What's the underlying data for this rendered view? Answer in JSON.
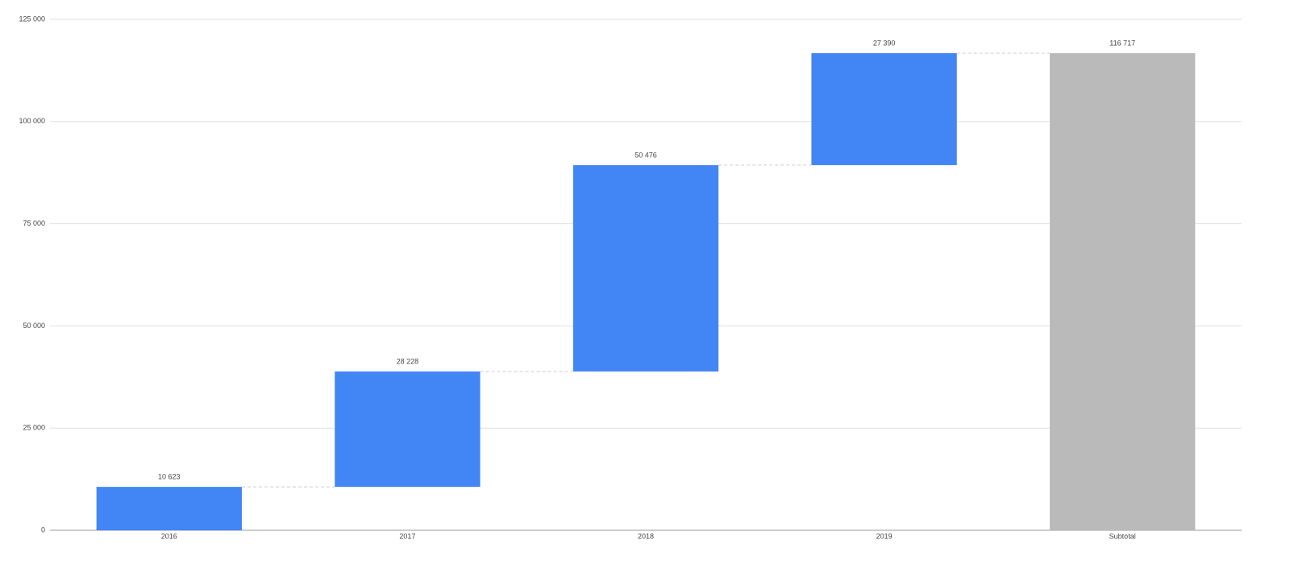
{
  "chart_data": {
    "type": "waterfall",
    "categories": [
      "2016",
      "2017",
      "2018",
      "2019",
      "Subtotal"
    ],
    "values": [
      10623,
      28228,
      50476,
      27390,
      116717
    ],
    "value_labels": [
      "10 623",
      "28 228",
      "50 476",
      "27 390",
      "116 717"
    ],
    "is_total": [
      false,
      false,
      false,
      false,
      true
    ],
    "color": "#4285f4",
    "total_color": "#bababa",
    "ylim": [
      0,
      125000
    ],
    "yticks": [
      0,
      {
        "value": 25000,
        "label": "25 000"
      },
      {
        "value": 50000,
        "label": "50 000"
      },
      {
        "value": 75000,
        "label": "75 000"
      },
      {
        "value": 100000,
        "label": "100 000"
      },
      {
        "value": 125000,
        "label": "125 000"
      }
    ],
    "grid": true
  }
}
